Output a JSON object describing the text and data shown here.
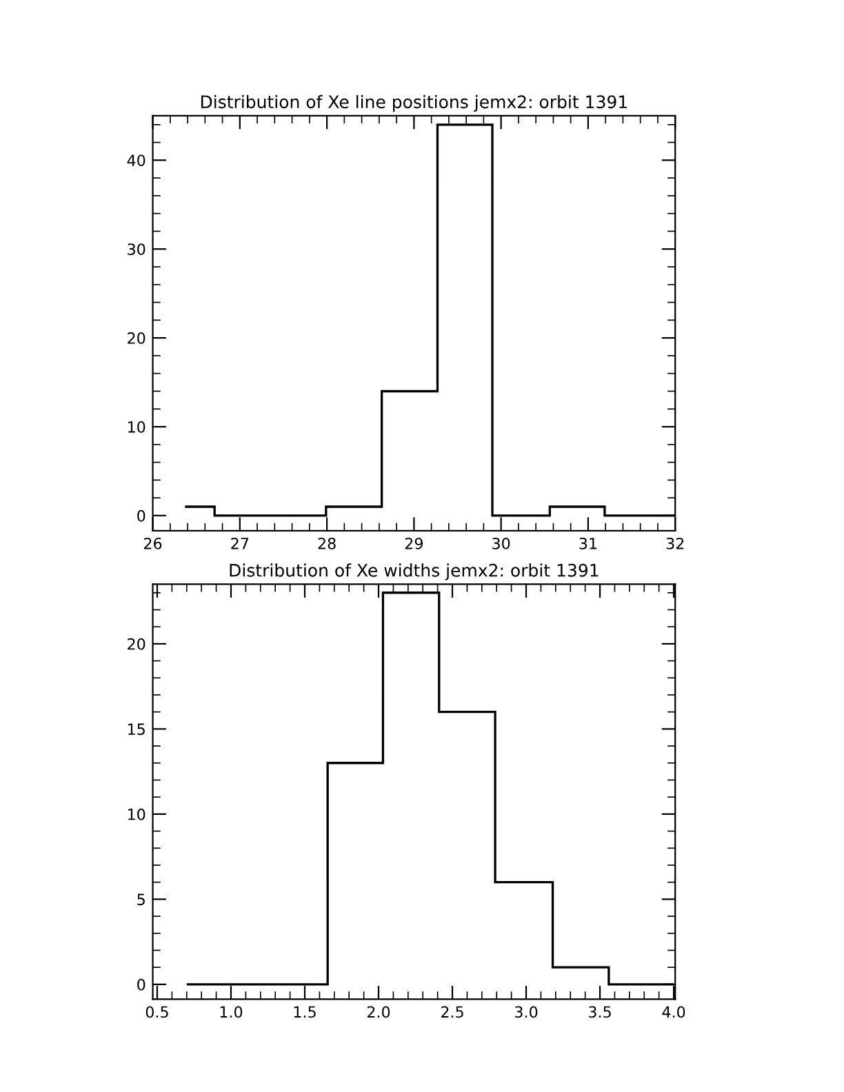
{
  "chart_data": [
    {
      "type": "histogram",
      "title": "Distribution of Xe line positions jemx2: orbit 1391",
      "bins": [
        26.37,
        26.71,
        27.99,
        28.63,
        29.27,
        29.9,
        30.56,
        31.19,
        32.0
      ],
      "values": [
        1,
        0,
        1,
        14,
        44,
        0,
        1,
        0
      ],
      "color": "#000000",
      "xlim": [
        26,
        32
      ],
      "xticks": [
        26,
        27,
        28,
        29,
        30,
        31,
        32
      ],
      "ylim": [
        -1.7,
        45
      ],
      "yticks": [
        0,
        10,
        20,
        30,
        40
      ],
      "grid": false
    },
    {
      "type": "histogram",
      "title": "Distribution of Xe widths jemx2: orbit 1391",
      "bins": [
        0.7,
        1.655,
        2.03,
        2.41,
        2.79,
        3.18,
        3.56,
        4.0
      ],
      "values": [
        0,
        13,
        23,
        16,
        6,
        1,
        0
      ],
      "color": "#000000",
      "xlim": [
        0.47,
        4.01
      ],
      "xticks": [
        {
          "value": 0.5,
          "label": "0.5"
        },
        {
          "value": 1.0,
          "label": "1.0"
        },
        {
          "value": 1.5,
          "label": "1.5"
        },
        {
          "value": 2.0,
          "label": "2.0"
        },
        {
          "value": 2.5,
          "label": "2.5"
        },
        {
          "value": 3.0,
          "label": "3.0"
        },
        {
          "value": 3.5,
          "label": "3.5"
        },
        {
          "value": 4.0,
          "label": "4.0"
        }
      ],
      "ylim": [
        -0.87,
        23.5
      ],
      "yticks": [
        0,
        5,
        10,
        15,
        20
      ],
      "grid": false
    }
  ]
}
